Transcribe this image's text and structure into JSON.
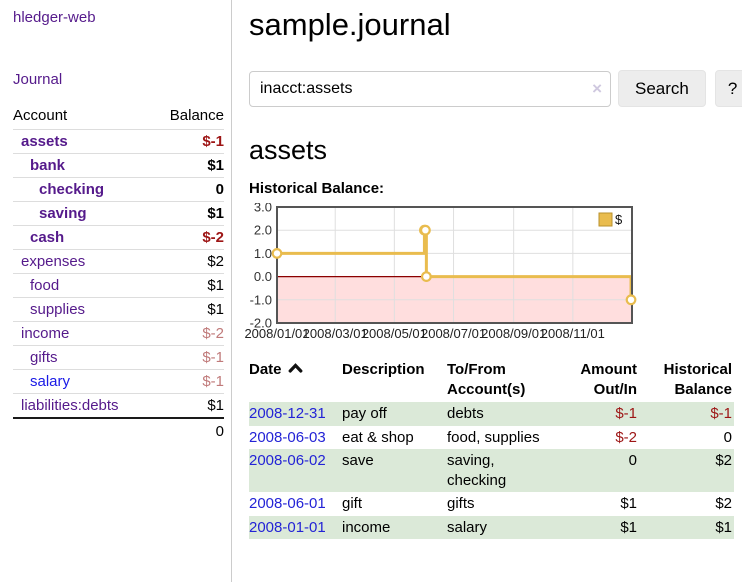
{
  "app": {
    "brand": "hledger-web",
    "nav_journal": "Journal"
  },
  "sidebar": {
    "header": {
      "account": "Account",
      "balance": "Balance"
    },
    "accounts": [
      {
        "name": "assets",
        "indent": 1,
        "balance": "$-1",
        "bold": true,
        "balance_tone": "neg",
        "link_tone": "purple"
      },
      {
        "name": "bank",
        "indent": 2,
        "balance": "$1",
        "bold": true,
        "balance_tone": "plain",
        "link_tone": "purple"
      },
      {
        "name": "checking",
        "indent": 3,
        "balance": "0",
        "bold": true,
        "balance_tone": "plain",
        "link_tone": "purple"
      },
      {
        "name": "saving",
        "indent": 3,
        "balance": "$1",
        "bold": true,
        "balance_tone": "plain",
        "link_tone": "purple"
      },
      {
        "name": "cash",
        "indent": 2,
        "balance": "$-2",
        "bold": true,
        "balance_tone": "neg",
        "link_tone": "purple"
      },
      {
        "name": "expenses",
        "indent": 1,
        "balance": "$2",
        "bold": false,
        "balance_tone": "plain",
        "link_tone": "purple"
      },
      {
        "name": "food",
        "indent": 2,
        "balance": "$1",
        "bold": false,
        "balance_tone": "plain",
        "link_tone": "purple"
      },
      {
        "name": "supplies",
        "indent": 2,
        "balance": "$1",
        "bold": false,
        "balance_tone": "plain",
        "link_tone": "purple"
      },
      {
        "name": "income",
        "indent": 1,
        "balance": "$-2",
        "bold": false,
        "balance_tone": "negsoft",
        "link_tone": "purple"
      },
      {
        "name": "gifts",
        "indent": 2,
        "balance": "$-1",
        "bold": false,
        "balance_tone": "negsoft",
        "link_tone": "purple"
      },
      {
        "name": "salary",
        "indent": 2,
        "balance": "$-1",
        "bold": false,
        "balance_tone": "negsoft",
        "link_tone": "blue"
      },
      {
        "name": "liabilities:debts",
        "indent": 1,
        "balance": "$1",
        "bold": false,
        "balance_tone": "plain",
        "link_tone": "purple"
      }
    ],
    "total": "0"
  },
  "page": {
    "title": "sample.journal"
  },
  "search": {
    "value": "inacct:assets",
    "clear_icon": "×",
    "search_label": "Search",
    "help_label": "?"
  },
  "account_view": {
    "heading": "assets",
    "chart_heading": "Historical Balance:"
  },
  "chart_data": {
    "type": "line",
    "title": "Historical Balance",
    "step": true,
    "x_range": [
      "2008-01-01",
      "2009-01-01"
    ],
    "ylim": [
      -2,
      3
    ],
    "yticks": [
      "3.0",
      "2.0",
      "1.0",
      "0.0",
      "-1.0",
      "-2.0"
    ],
    "xticks": [
      "2008/01/01",
      "2008/03/01",
      "2008/05/01",
      "2008/07/01",
      "2008/09/01",
      "2008/11/01"
    ],
    "legend": {
      "label": "$",
      "position": "top-right"
    },
    "grid": true,
    "series": [
      {
        "name": "$",
        "color": "#e9bc4e",
        "marker": "open-circle",
        "points": [
          [
            "2008-01-01",
            1
          ],
          [
            "2008-06-01",
            2
          ],
          [
            "2008-06-02",
            2
          ],
          [
            "2008-06-03",
            0
          ],
          [
            "2008-12-31",
            -1
          ]
        ]
      }
    ],
    "negative_region_fill": "#ffdede",
    "zero_line_color": "#8b0000"
  },
  "register": {
    "columns": [
      {
        "line1": "Date",
        "line2": "",
        "align": "left",
        "sort": "asc",
        "sort_icon": "chevron-up-icon"
      },
      {
        "line1": "Description",
        "line2": "",
        "align": "left"
      },
      {
        "line1": "To/From",
        "line2": "Account(s)",
        "align": "left"
      },
      {
        "line1": "Amount",
        "line2": "Out/In",
        "align": "right"
      },
      {
        "line1": "Historical",
        "line2": "Balance",
        "align": "right"
      }
    ],
    "rows": [
      {
        "date": "2008-12-31",
        "description": "pay off",
        "accounts": "debts",
        "amount": "$-1",
        "amount_tone": "neg",
        "balance": "$-1",
        "balance_tone": "neg"
      },
      {
        "date": "2008-06-03",
        "description": "eat & shop",
        "accounts": "food, supplies",
        "amount": "$-2",
        "amount_tone": "neg",
        "balance": "0",
        "balance_tone": "plain"
      },
      {
        "date": "2008-06-02",
        "description": "save",
        "accounts": "saving, checking",
        "amount": "0",
        "amount_tone": "plain",
        "balance": "$2",
        "balance_tone": "plain"
      },
      {
        "date": "2008-06-01",
        "description": "gift",
        "accounts": "gifts",
        "amount": "$1",
        "amount_tone": "plain",
        "balance": "$2",
        "balance_tone": "plain"
      },
      {
        "date": "2008-01-01",
        "description": "income",
        "accounts": "salary",
        "amount": "$1",
        "amount_tone": "plain",
        "balance": "$1",
        "balance_tone": "plain"
      }
    ]
  },
  "colors": {
    "accent_purple": "#551a8b",
    "link_blue": "#2323d6",
    "negative_red": "#9d1515",
    "negative_soft_red": "#c07a7a",
    "row_stripe_green": "#dbe9d8",
    "chart_line_gold": "#e9bc4e",
    "chart_negative_fill": "#ffdede",
    "chart_zero_line": "#8b0000"
  }
}
